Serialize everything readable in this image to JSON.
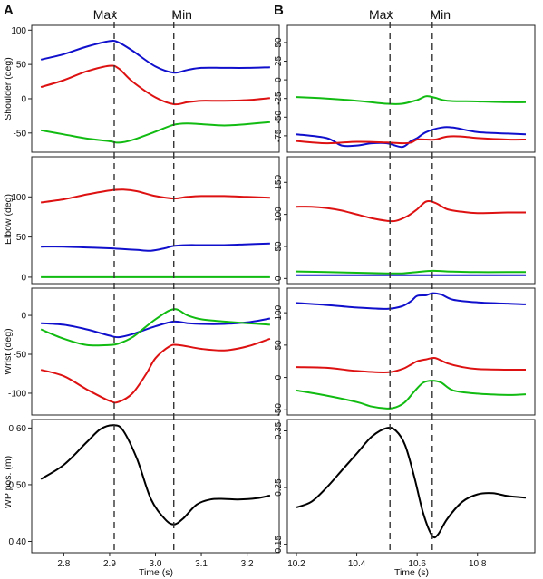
{
  "figure": {
    "panel_labels": [
      "A",
      "B"
    ],
    "markers": [
      {
        "label": "Max",
        "A": 2.91,
        "B": 10.51
      },
      {
        "label": "Min",
        "A": 3.04,
        "B": 10.65
      }
    ],
    "xlabel": "Time (s)",
    "colors": {
      "blue": "#1010cc",
      "red": "#dd1111",
      "green": "#11bb11",
      "black": "#000000",
      "marker_line": "#333333"
    }
  },
  "chart_data": [
    {
      "type": "line",
      "panel": "A",
      "row": 0,
      "ylabel": "Shoulder (deg)",
      "xlim": [
        2.73,
        3.27
      ],
      "ylim": [
        -78,
        107
      ],
      "yticks": [
        -50,
        0,
        50,
        100
      ],
      "series": [
        {
          "color": "blue",
          "x": [
            2.75,
            2.8,
            2.85,
            2.9,
            2.92,
            2.95,
            3.0,
            3.04,
            3.07,
            3.1,
            3.15,
            3.2,
            3.25
          ],
          "y": [
            57,
            65,
            76,
            84,
            82,
            70,
            47,
            38,
            42,
            45,
            45,
            45,
            46
          ]
        },
        {
          "color": "red",
          "x": [
            2.75,
            2.8,
            2.85,
            2.9,
            2.92,
            2.95,
            3.0,
            3.04,
            3.07,
            3.1,
            3.15,
            3.2,
            3.25
          ],
          "y": [
            17,
            27,
            40,
            48,
            44,
            25,
            2,
            -8,
            -5,
            -3,
            -3,
            -2,
            1
          ]
        },
        {
          "color": "green",
          "x": [
            2.75,
            2.8,
            2.85,
            2.9,
            2.92,
            2.95,
            3.0,
            3.04,
            3.07,
            3.1,
            3.15,
            3.2,
            3.25
          ],
          "y": [
            -46,
            -52,
            -58,
            -62,
            -64,
            -60,
            -48,
            -38,
            -36,
            -37,
            -39,
            -37,
            -34
          ]
        }
      ]
    },
    {
      "type": "line",
      "panel": "A",
      "row": 1,
      "ylabel": "Elbow (deg)",
      "xlim": [
        2.73,
        3.27
      ],
      "ylim": [
        -8,
        150
      ],
      "yticks": [
        0,
        50,
        100
      ],
      "series": [
        {
          "color": "red",
          "x": [
            2.75,
            2.8,
            2.85,
            2.9,
            2.93,
            2.96,
            3.0,
            3.04,
            3.07,
            3.1,
            3.15,
            3.2,
            3.25
          ],
          "y": [
            93,
            97,
            103,
            108,
            109,
            107,
            101,
            98,
            100,
            101,
            101,
            100,
            99
          ]
        },
        {
          "color": "blue",
          "x": [
            2.75,
            2.8,
            2.85,
            2.9,
            2.93,
            2.96,
            2.99,
            3.02,
            3.04,
            3.07,
            3.1,
            3.15,
            3.2,
            3.25
          ],
          "y": [
            38,
            38,
            37,
            36,
            35,
            34,
            33,
            36,
            39,
            40,
            40,
            40,
            41,
            42
          ]
        },
        {
          "color": "green",
          "x": [
            2.75,
            3.25
          ],
          "y": [
            0,
            0
          ]
        }
      ]
    },
    {
      "type": "line",
      "panel": "A",
      "row": 2,
      "ylabel": "Wrist (deg)",
      "xlim": [
        2.73,
        3.27
      ],
      "ylim": [
        -128,
        35
      ],
      "yticks": [
        -100,
        -50,
        0
      ],
      "series": [
        {
          "color": "blue",
          "x": [
            2.75,
            2.8,
            2.85,
            2.9,
            2.92,
            2.95,
            3.0,
            3.04,
            3.07,
            3.1,
            3.15,
            3.2,
            3.25
          ],
          "y": [
            -10,
            -12,
            -18,
            -26,
            -28,
            -24,
            -14,
            -8,
            -10,
            -11,
            -11,
            -9,
            -4
          ]
        },
        {
          "color": "green",
          "x": [
            2.75,
            2.8,
            2.85,
            2.9,
            2.92,
            2.95,
            3.0,
            3.04,
            3.07,
            3.1,
            3.15,
            3.2,
            3.25
          ],
          "y": [
            -18,
            -30,
            -38,
            -38,
            -36,
            -28,
            -5,
            8,
            0,
            -5,
            -8,
            -10,
            -12
          ]
        },
        {
          "color": "red",
          "x": [
            2.75,
            2.8,
            2.85,
            2.9,
            2.92,
            2.95,
            2.98,
            3.0,
            3.03,
            3.05,
            3.1,
            3.15,
            3.2,
            3.25
          ],
          "y": [
            -70,
            -78,
            -95,
            -110,
            -111,
            -100,
            -75,
            -55,
            -40,
            -38,
            -43,
            -45,
            -40,
            -30
          ]
        }
      ]
    },
    {
      "type": "line",
      "panel": "A",
      "row": 3,
      "ylabel": "WP pos. (m)",
      "xlim": [
        2.73,
        3.27
      ],
      "ylim": [
        0.38,
        0.615
      ],
      "yticks": [
        0.4,
        0.5,
        0.6
      ],
      "ytick_labels": [
        "0.40",
        "0.50",
        "0.60"
      ],
      "xticks": [
        2.8,
        2.9,
        3.0,
        3.1,
        3.2
      ],
      "xtick_labels": [
        "2.8",
        "2.9",
        "3.0",
        "3.1",
        "3.2"
      ],
      "series": [
        {
          "color": "black",
          "x": [
            2.75,
            2.8,
            2.85,
            2.88,
            2.91,
            2.93,
            2.96,
            2.99,
            3.02,
            3.04,
            3.06,
            3.09,
            3.12,
            3.15,
            3.18,
            3.22,
            3.25
          ],
          "y": [
            0.51,
            0.535,
            0.575,
            0.598,
            0.605,
            0.595,
            0.545,
            0.475,
            0.44,
            0.43,
            0.44,
            0.465,
            0.474,
            0.475,
            0.474,
            0.476,
            0.481
          ]
        }
      ]
    },
    {
      "type": "line",
      "panel": "B",
      "row": 0,
      "ylabel": "",
      "xlim": [
        10.17,
        10.99
      ],
      "ylim": [
        -97,
        73
      ],
      "yticks": [
        -75,
        -50,
        -25,
        0,
        25,
        50
      ],
      "series": [
        {
          "color": "green",
          "x": [
            10.2,
            10.3,
            10.4,
            10.5,
            10.55,
            10.6,
            10.63,
            10.66,
            10.7,
            10.8,
            10.9,
            10.96
          ],
          "y": [
            -23,
            -25,
            -28,
            -32,
            -32,
            -27,
            -22,
            -24,
            -28,
            -29,
            -30,
            -30
          ]
        },
        {
          "color": "blue",
          "x": [
            10.2,
            10.3,
            10.35,
            10.4,
            10.45,
            10.5,
            10.55,
            10.58,
            10.6,
            10.63,
            10.68,
            10.72,
            10.8,
            10.9,
            10.96
          ],
          "y": [
            -73,
            -78,
            -88,
            -88,
            -85,
            -85,
            -90,
            -82,
            -78,
            -70,
            -64,
            -64,
            -70,
            -72,
            -73
          ]
        },
        {
          "color": "red",
          "x": [
            10.2,
            10.3,
            10.4,
            10.5,
            10.55,
            10.58,
            10.6,
            10.63,
            10.66,
            10.7,
            10.75,
            10.8,
            10.9,
            10.96
          ],
          "y": [
            -82,
            -85,
            -83,
            -84,
            -85,
            -84,
            -80,
            -80,
            -80,
            -76,
            -76,
            -78,
            -80,
            -80
          ]
        }
      ]
    },
    {
      "type": "line",
      "panel": "B",
      "row": 1,
      "ylabel": "",
      "xlim": [
        10.17,
        10.99
      ],
      "ylim": [
        -8,
        190
      ],
      "yticks": [
        0,
        50,
        100,
        150
      ],
      "series": [
        {
          "color": "red",
          "x": [
            10.2,
            10.25,
            10.3,
            10.35,
            10.4,
            10.45,
            10.5,
            10.53,
            10.57,
            10.6,
            10.63,
            10.66,
            10.7,
            10.75,
            10.8,
            10.9,
            10.96
          ],
          "y": [
            112,
            112,
            110,
            106,
            100,
            94,
            90,
            90,
            98,
            108,
            120,
            118,
            108,
            104,
            102,
            103,
            103
          ]
        },
        {
          "color": "green",
          "x": [
            10.2,
            10.3,
            10.4,
            10.5,
            10.55,
            10.6,
            10.65,
            10.7,
            10.8,
            10.9,
            10.96
          ],
          "y": [
            11,
            10,
            9,
            8,
            8,
            10,
            12,
            11,
            10,
            10,
            10
          ]
        },
        {
          "color": "blue",
          "x": [
            10.2,
            10.96
          ],
          "y": [
            5,
            5
          ]
        }
      ]
    },
    {
      "type": "line",
      "panel": "B",
      "row": 2,
      "ylabel": "",
      "xlim": [
        10.17,
        10.99
      ],
      "ylim": [
        -58,
        138
      ],
      "yticks": [
        -50,
        0,
        50,
        100
      ],
      "series": [
        {
          "color": "blue",
          "x": [
            10.2,
            10.3,
            10.4,
            10.5,
            10.55,
            10.58,
            10.6,
            10.63,
            10.65,
            10.68,
            10.72,
            10.8,
            10.9,
            10.96
          ],
          "y": [
            115,
            112,
            108,
            106,
            110,
            118,
            126,
            127,
            130,
            128,
            120,
            116,
            114,
            113
          ]
        },
        {
          "color": "red",
          "x": [
            10.2,
            10.3,
            10.4,
            10.5,
            10.55,
            10.58,
            10.6,
            10.63,
            10.66,
            10.7,
            10.75,
            10.8,
            10.9,
            10.96
          ],
          "y": [
            16,
            15,
            10,
            8,
            13,
            20,
            25,
            28,
            30,
            22,
            16,
            13,
            12,
            12
          ]
        },
        {
          "color": "green",
          "x": [
            10.2,
            10.3,
            10.4,
            10.45,
            10.5,
            10.53,
            10.56,
            10.59,
            10.62,
            10.65,
            10.68,
            10.72,
            10.8,
            10.9,
            10.96
          ],
          "y": [
            -20,
            -28,
            -38,
            -45,
            -48,
            -46,
            -38,
            -22,
            -8,
            -5,
            -8,
            -20,
            -25,
            -27,
            -26
          ]
        }
      ]
    },
    {
      "type": "line",
      "panel": "B",
      "row": 3,
      "ylabel": "",
      "xlim": [
        10.17,
        10.99
      ],
      "ylim": [
        0.135,
        0.37
      ],
      "yticks": [
        0.15,
        0.25,
        0.35
      ],
      "ytick_labels": [
        "0.15",
        "0.25",
        "0.35"
      ],
      "xticks": [
        10.2,
        10.4,
        10.6,
        10.8
      ],
      "xtick_labels": [
        "10.2",
        "10.4",
        "10.6",
        "10.8"
      ],
      "series": [
        {
          "color": "black",
          "x": [
            10.2,
            10.25,
            10.3,
            10.35,
            10.4,
            10.45,
            10.5,
            10.53,
            10.56,
            10.59,
            10.62,
            10.65,
            10.67,
            10.7,
            10.75,
            10.8,
            10.85,
            10.9,
            10.96
          ],
          "y": [
            0.215,
            0.225,
            0.25,
            0.28,
            0.31,
            0.34,
            0.355,
            0.35,
            0.325,
            0.27,
            0.205,
            0.165,
            0.168,
            0.195,
            0.225,
            0.238,
            0.24,
            0.235,
            0.232
          ]
        }
      ]
    }
  ]
}
